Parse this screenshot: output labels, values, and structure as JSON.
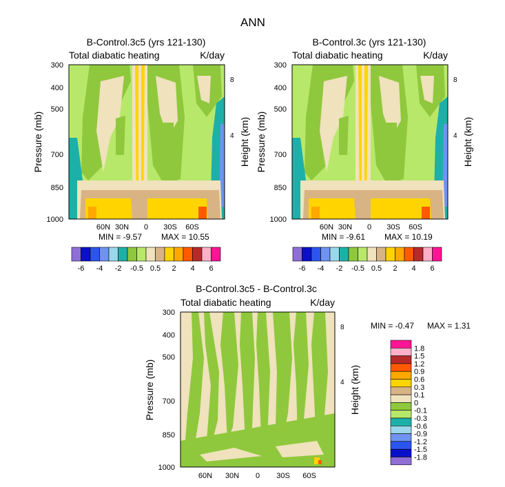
{
  "figure_title": "ANN",
  "chart_data": [
    {
      "type": "heatmap",
      "title": "B-Control.3c5 (yrs 121-130)",
      "subtitle": "Total diabatic heating",
      "units": "K/day",
      "ylabel": "Pressure (mb)",
      "ylabel_right": "Height (km)",
      "y_ticks": [
        "300",
        "400",
        "500",
        "700",
        "850",
        "1000"
      ],
      "y_ticks_right": [
        "8",
        "4"
      ],
      "x_ticks": [
        "60N",
        "30N",
        "0",
        "30S",
        "60S"
      ],
      "min_label": "MIN = -9.57",
      "max_label": "MAX = 10.55",
      "min": -9.57,
      "max": 10.55
    },
    {
      "type": "heatmap",
      "title": "B-Control.3c (yrs 121-130)",
      "subtitle": "Total diabatic heating",
      "units": "K/day",
      "ylabel": "Pressure (mb)",
      "ylabel_right": "Height (km)",
      "y_ticks": [
        "300",
        "400",
        "500",
        "700",
        "850",
        "1000"
      ],
      "y_ticks_right": [
        "8",
        "4"
      ],
      "x_ticks": [
        "60N",
        "30N",
        "0",
        "30S",
        "60S"
      ],
      "min_label": "MIN = -9.61",
      "max_label": "MAX = 10.19",
      "min": -9.61,
      "max": 10.19
    },
    {
      "type": "heatmap",
      "title": "B-Control.3c5 - B-Control.3c",
      "subtitle": "Total diabatic heating",
      "units": "K/day",
      "ylabel": "Pressure (mb)",
      "ylabel_right": "Height (km)",
      "y_ticks": [
        "300",
        "400",
        "500",
        "700",
        "850",
        "1000"
      ],
      "y_ticks_right": [
        "8",
        "4"
      ],
      "x_ticks": [
        "60N",
        "30N",
        "0",
        "30S",
        "60S"
      ],
      "min_label": "MIN = -0.47",
      "max_label": "MAX = 1.31",
      "min": -0.47,
      "max": 1.31
    }
  ],
  "top_colorbar": {
    "labels": [
      "-6",
      "-4",
      "-2",
      "-0.5",
      "0.5",
      "2",
      "4",
      "6"
    ],
    "colors": [
      "#8f6fd6",
      "#0a10c8",
      "#2c55ee",
      "#6e93f0",
      "#9ad7ea",
      "#1db0a8",
      "#8fc83c",
      "#b8e86a",
      "#efe2bc",
      "#d8b384",
      "#ffd400",
      "#ffa800",
      "#ff5a00",
      "#b72a2a",
      "#ffb0c8",
      "#ff1493"
    ]
  },
  "diff_colorbar": {
    "labels": [
      "1.8",
      "1.5",
      "1.2",
      "0.9",
      "0.6",
      "0.3",
      "0.1",
      "0",
      "-0.1",
      "-0.3",
      "-0.6",
      "-0.9",
      "-1.2",
      "-1.5",
      "-1.8"
    ],
    "colors": [
      "#ff1493",
      "#ffb0c8",
      "#b72a2a",
      "#ff5a00",
      "#ffa800",
      "#ffd400",
      "#d8b384",
      "#efe2bc",
      "#8fc83c",
      "#b8e86a",
      "#1db0a8",
      "#9ad7ea",
      "#6e93f0",
      "#2c55ee",
      "#0a10c8",
      "#8f6fd6"
    ]
  }
}
